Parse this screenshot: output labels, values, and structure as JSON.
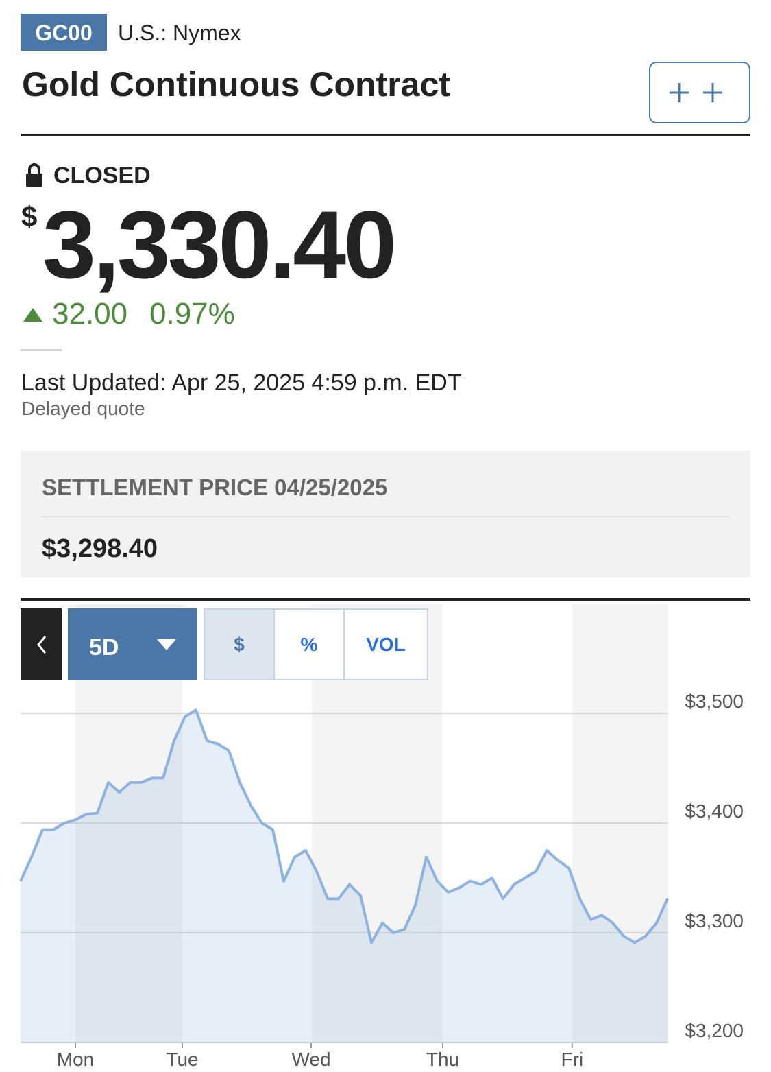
{
  "header": {
    "symbol": "GC00",
    "exchange": "U.S.: Nymex",
    "title": "Gold Continuous Contract"
  },
  "quote": {
    "status": "CLOSED",
    "currency": "$",
    "price": "3,330.40",
    "change": "32.00",
    "change_percent": "0.97%",
    "last_updated": "Last Updated: Apr 25, 2025 4:59 p.m. EDT",
    "delay_note": "Delayed quote"
  },
  "settlement": {
    "label": "SETTLEMENT PRICE 04/25/2025",
    "value": "$3,298.40"
  },
  "chart_controls": {
    "range": "5D",
    "modes": [
      "$",
      "%",
      "VOL"
    ]
  },
  "chart_data": {
    "type": "line",
    "color": "#8fb3e0",
    "values": [
      3347,
      3369,
      3394,
      3394,
      3400,
      3403,
      3408,
      3409,
      3437,
      3428,
      3437,
      3437,
      3441,
      3441,
      3475,
      3497,
      3503,
      3475,
      3472,
      3466,
      3437,
      3416,
      3400,
      3394,
      3347,
      3369,
      3375,
      3356,
      3331,
      3331,
      3344,
      3334,
      3291,
      3309,
      3300,
      3303,
      3325,
      3369,
      3347,
      3337,
      3341,
      3347,
      3344,
      3350,
      3331,
      3344,
      3350,
      3356,
      3375,
      3366,
      3359,
      3331,
      3312,
      3316,
      3309,
      3297,
      3291,
      3297,
      3309,
      3331
    ],
    "xlim": [
      0,
      59
    ],
    "xticks": [
      {
        "value": 5,
        "label": "Mon"
      },
      {
        "value": 14.75,
        "label": "Tue"
      },
      {
        "value": 26.5,
        "label": "Wed"
      },
      {
        "value": 38.5,
        "label": "Thu"
      },
      {
        "value": 50.3,
        "label": "Fri"
      }
    ],
    "ylim": [
      3200,
      3525
    ],
    "yticks": [
      {
        "value": 3200,
        "label": "$3,200"
      },
      {
        "value": 3300,
        "label": "$3,300"
      },
      {
        "value": 3400,
        "label": "$3,400"
      },
      {
        "value": 3500,
        "label": "$3,500"
      }
    ],
    "grid": true
  }
}
